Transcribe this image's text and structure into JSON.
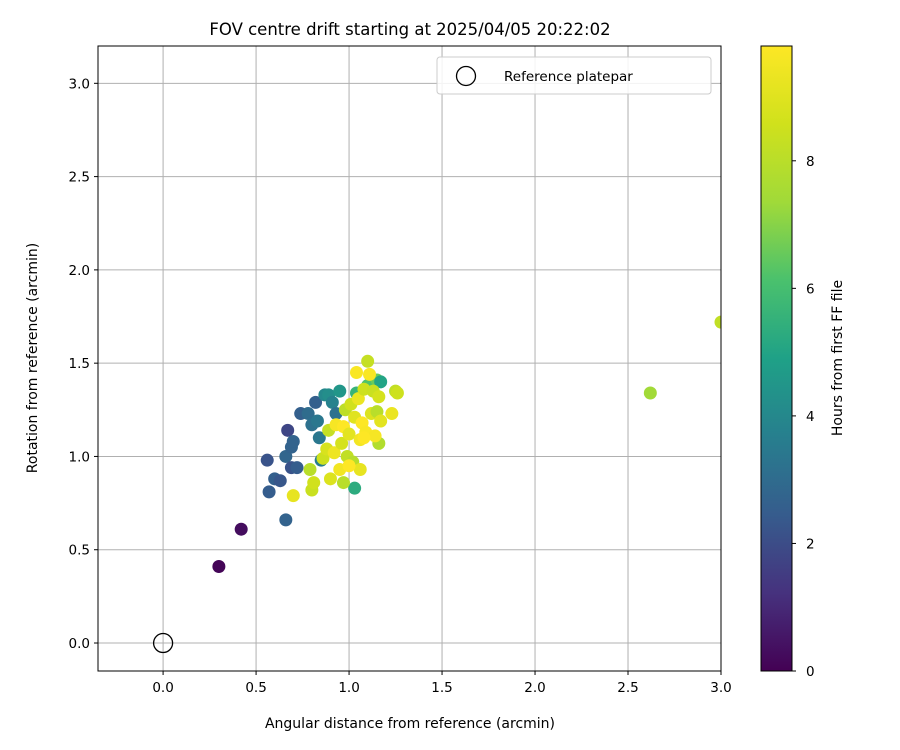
{
  "chart_data": {
    "type": "scatter",
    "title": "FOV centre drift starting at 2025/04/05 20:22:02",
    "xlabel": "Angular distance from reference (arcmin)",
    "ylabel": "Rotation from reference (arcmin)",
    "xlim": [
      -0.35,
      3.0
    ],
    "ylim": [
      -0.15,
      3.2
    ],
    "xticks": [
      "0.0",
      "0.5",
      "1.0",
      "1.5",
      "2.0",
      "2.5",
      "3.0"
    ],
    "yticks": [
      "0.0",
      "0.5",
      "1.0",
      "1.5",
      "2.0",
      "2.5",
      "3.0"
    ],
    "grid": true,
    "legend": {
      "position": "top-right",
      "entries": [
        "Reference platepar"
      ]
    },
    "colorbar": {
      "label": "Hours from first FF file",
      "range": [
        0,
        9.8
      ],
      "ticks": [
        "0",
        "2",
        "4",
        "6",
        "8"
      ],
      "colormap": "viridis"
    },
    "reference_point": {
      "x": 0.0,
      "y": 0.0,
      "label": "Reference platepar"
    },
    "series": [
      {
        "points": [
          {
            "x": 0.3,
            "y": 0.41,
            "t": 0.1
          },
          {
            "x": 0.42,
            "y": 0.61,
            "t": 0.3
          },
          {
            "x": 0.56,
            "y": 0.98,
            "t": 2.2
          },
          {
            "x": 0.57,
            "y": 0.81,
            "t": 2.5
          },
          {
            "x": 0.6,
            "y": 0.88,
            "t": 2.6
          },
          {
            "x": 0.63,
            "y": 0.87,
            "t": 2.3
          },
          {
            "x": 0.66,
            "y": 1.0,
            "t": 2.8
          },
          {
            "x": 0.67,
            "y": 1.14,
            "t": 1.8
          },
          {
            "x": 0.66,
            "y": 0.66,
            "t": 2.7
          },
          {
            "x": 0.69,
            "y": 1.05,
            "t": 2.7
          },
          {
            "x": 0.7,
            "y": 1.08,
            "t": 2.7
          },
          {
            "x": 0.69,
            "y": 0.94,
            "t": 2.2
          },
          {
            "x": 0.72,
            "y": 0.94,
            "t": 2.5
          },
          {
            "x": 0.74,
            "y": 1.23,
            "t": 2.6
          },
          {
            "x": 0.78,
            "y": 1.23,
            "t": 3.0
          },
          {
            "x": 0.8,
            "y": 1.17,
            "t": 3.2
          },
          {
            "x": 0.82,
            "y": 1.29,
            "t": 2.6
          },
          {
            "x": 0.83,
            "y": 1.19,
            "t": 3.4
          },
          {
            "x": 0.84,
            "y": 1.1,
            "t": 3.4
          },
          {
            "x": 0.85,
            "y": 0.98,
            "t": 3.6
          },
          {
            "x": 0.87,
            "y": 1.33,
            "t": 4.0
          },
          {
            "x": 0.89,
            "y": 1.33,
            "t": 4.2
          },
          {
            "x": 0.91,
            "y": 1.29,
            "t": 3.8
          },
          {
            "x": 0.93,
            "y": 1.23,
            "t": 3.2
          },
          {
            "x": 0.95,
            "y": 1.35,
            "t": 4.5
          },
          {
            "x": 1.03,
            "y": 0.83,
            "t": 5.3
          },
          {
            "x": 1.04,
            "y": 1.34,
            "t": 5.6
          },
          {
            "x": 1.1,
            "y": 1.38,
            "t": 6.2
          },
          {
            "x": 1.15,
            "y": 1.41,
            "t": 6.6
          },
          {
            "x": 1.17,
            "y": 1.4,
            "t": 5.0
          },
          {
            "x": 1.16,
            "y": 1.07,
            "t": 7.8
          },
          {
            "x": 2.62,
            "y": 1.34,
            "t": 7.4
          },
          {
            "x": 0.79,
            "y": 0.93,
            "t": 8.0
          },
          {
            "x": 0.8,
            "y": 0.82,
            "t": 8.4
          },
          {
            "x": 0.81,
            "y": 0.86,
            "t": 8.6
          },
          {
            "x": 0.7,
            "y": 0.79,
            "t": 9.2
          },
          {
            "x": 0.86,
            "y": 0.99,
            "t": 8.5
          },
          {
            "x": 0.88,
            "y": 1.04,
            "t": 8.8
          },
          {
            "x": 0.89,
            "y": 1.14,
            "t": 8.3
          },
          {
            "x": 0.9,
            "y": 0.88,
            "t": 8.9
          },
          {
            "x": 0.92,
            "y": 1.02,
            "t": 9.4
          },
          {
            "x": 0.93,
            "y": 1.17,
            "t": 9.6
          },
          {
            "x": 0.95,
            "y": 0.93,
            "t": 9.5
          },
          {
            "x": 0.96,
            "y": 1.07,
            "t": 8.7
          },
          {
            "x": 0.97,
            "y": 1.16,
            "t": 9.8
          },
          {
            "x": 0.98,
            "y": 1.25,
            "t": 8.1
          },
          {
            "x": 0.99,
            "y": 1.0,
            "t": 8.2
          },
          {
            "x": 1.0,
            "y": 1.12,
            "t": 9.1
          },
          {
            "x": 1.01,
            "y": 1.28,
            "t": 8.6
          },
          {
            "x": 1.02,
            "y": 0.97,
            "t": 7.9
          },
          {
            "x": 1.03,
            "y": 1.21,
            "t": 9.0
          },
          {
            "x": 1.04,
            "y": 1.45,
            "t": 9.7
          },
          {
            "x": 1.05,
            "y": 1.31,
            "t": 9.3
          },
          {
            "x": 1.06,
            "y": 1.09,
            "t": 9.5
          },
          {
            "x": 1.06,
            "y": 0.93,
            "t": 9.2
          },
          {
            "x": 1.07,
            "y": 1.18,
            "t": 9.8
          },
          {
            "x": 1.08,
            "y": 1.36,
            "t": 8.5
          },
          {
            "x": 1.09,
            "y": 1.13,
            "t": 9.7
          },
          {
            "x": 1.1,
            "y": 1.51,
            "t": 8.3
          },
          {
            "x": 1.11,
            "y": 1.44,
            "t": 9.7
          },
          {
            "x": 1.12,
            "y": 1.23,
            "t": 8.9
          },
          {
            "x": 1.13,
            "y": 1.35,
            "t": 8.4
          },
          {
            "x": 1.14,
            "y": 1.11,
            "t": 9.6
          },
          {
            "x": 1.15,
            "y": 1.24,
            "t": 8.0
          },
          {
            "x": 1.16,
            "y": 1.32,
            "t": 8.7
          },
          {
            "x": 1.17,
            "y": 1.19,
            "t": 9.1
          },
          {
            "x": 1.23,
            "y": 1.23,
            "t": 9.3
          },
          {
            "x": 1.25,
            "y": 1.35,
            "t": 8.2
          },
          {
            "x": 1.26,
            "y": 1.34,
            "t": 8.5
          },
          {
            "x": 0.97,
            "y": 0.86,
            "t": 8.0
          },
          {
            "x": 1.0,
            "y": 0.95,
            "t": 9.9
          },
          {
            "x": 1.08,
            "y": 1.1,
            "t": 9.9
          },
          {
            "x": 3.0,
            "y": 1.72,
            "t": 8.2
          }
        ]
      }
    ]
  }
}
